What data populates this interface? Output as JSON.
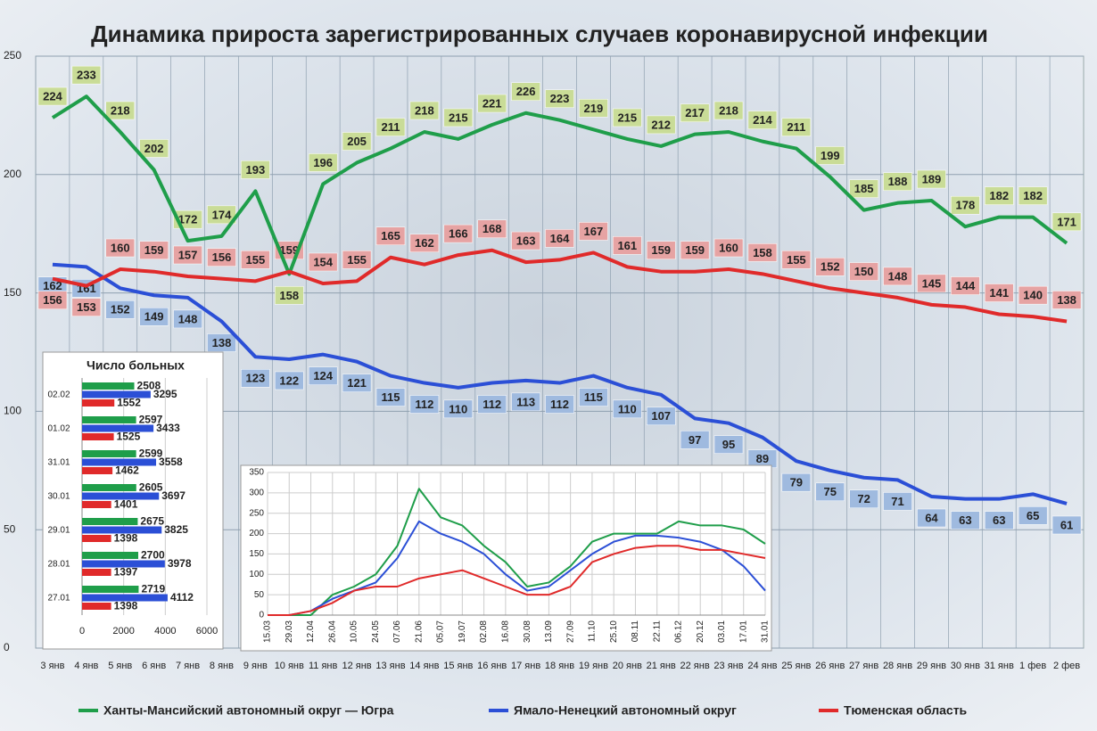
{
  "chart_data": [
    {
      "type": "line",
      "title": "Динамика прироста зарегистрированных случаев коронавирусной инфекции",
      "categories": [
        "3 янв",
        "4 янв",
        "5 янв",
        "6 янв",
        "7 янв",
        "8 янв",
        "9 янв",
        "10 янв",
        "11 янв",
        "12 янв",
        "13 янв",
        "14 янв",
        "15 янв",
        "16 янв",
        "17 янв",
        "18 янв",
        "19 янв",
        "20 янв",
        "21 янв",
        "22 янв",
        "23 янв",
        "24 янв",
        "25 янв",
        "26 янв",
        "27 янв",
        "28 янв",
        "29 янв",
        "30 янв",
        "31 янв",
        "1 фев",
        "2 фев"
      ],
      "series": [
        {
          "name": "Ханты-Мансийский автономный округ — Югра",
          "color": "#1f9e4a",
          "label_color": "#c9dc97",
          "values": [
            224,
            233,
            218,
            202,
            172,
            174,
            193,
            158,
            196,
            205,
            211,
            218,
            215,
            221,
            226,
            223,
            219,
            215,
            212,
            217,
            218,
            214,
            211,
            199,
            185,
            188,
            189,
            178,
            182,
            182,
            171
          ]
        },
        {
          "name": "Ямало-Ненецкий автономный округ",
          "color": "#2b4fd6",
          "label_color": "#9fbadf",
          "values": [
            162,
            161,
            152,
            149,
            148,
            138,
            123,
            122,
            124,
            121,
            115,
            112,
            110,
            112,
            113,
            112,
            115,
            110,
            107,
            97,
            95,
            89,
            79,
            75,
            72,
            71,
            64,
            63,
            63,
            65,
            61
          ]
        },
        {
          "name": "Тюменская область",
          "color": "#e02a2a",
          "label_color": "#e6a3a3",
          "values": [
            156,
            153,
            160,
            159,
            157,
            156,
            155,
            159,
            154,
            155,
            165,
            162,
            166,
            168,
            163,
            164,
            167,
            161,
            159,
            159,
            160,
            158,
            155,
            152,
            150,
            148,
            145,
            144,
            141,
            140,
            138
          ]
        }
      ],
      "ylim": [
        0,
        250
      ],
      "yticks": [
        0,
        50,
        100,
        150,
        200,
        250
      ],
      "grid": true
    },
    {
      "type": "hbar",
      "title": "Число больных",
      "categories": [
        "02.02",
        "01.02",
        "31.01",
        "30.01",
        "29.01",
        "28.01",
        "27.01"
      ],
      "series": [
        {
          "color": "#1f9e4a",
          "values": [
            2508,
            2597,
            2599,
            2605,
            2675,
            2700,
            2719
          ]
        },
        {
          "color": "#2b4fd6",
          "values": [
            3295,
            3433,
            3558,
            3697,
            3825,
            3978,
            4112
          ]
        },
        {
          "color": "#e02a2a",
          "values": [
            1552,
            1525,
            1462,
            1401,
            1398,
            1397,
            1398
          ]
        }
      ],
      "xlim": [
        0,
        6000
      ],
      "xticks": [
        0,
        2000,
        4000,
        6000
      ],
      "grid": true
    },
    {
      "type": "line",
      "categories": [
        "15.03",
        "29.03",
        "12.04",
        "26.04",
        "10.05",
        "24.05",
        "07.06",
        "21.06",
        "05.07",
        "19.07",
        "02.08",
        "16.08",
        "30.08",
        "13.09",
        "27.09",
        "11.10",
        "25.10",
        "08.11",
        "22.11",
        "06.12",
        "20.12",
        "03.01",
        "17.01",
        "31.01"
      ],
      "series": [
        {
          "color": "#1f9e4a",
          "values": [
            0,
            0,
            0,
            50,
            70,
            100,
            170,
            310,
            240,
            220,
            170,
            130,
            70,
            80,
            120,
            180,
            200,
            200,
            200,
            230,
            220,
            220,
            210,
            175
          ]
        },
        {
          "color": "#2b4fd6",
          "values": [
            0,
            0,
            10,
            40,
            60,
            80,
            140,
            230,
            200,
            180,
            150,
            100,
            60,
            70,
            110,
            150,
            180,
            195,
            195,
            190,
            180,
            160,
            120,
            60
          ]
        },
        {
          "color": "#e02a2a",
          "values": [
            0,
            0,
            10,
            30,
            60,
            70,
            70,
            90,
            100,
            110,
            90,
            70,
            50,
            50,
            70,
            130,
            150,
            165,
            170,
            170,
            160,
            160,
            150,
            140
          ]
        }
      ],
      "ylim": [
        0,
        350
      ],
      "yticks": [
        0,
        50,
        100,
        150,
        200,
        250,
        300,
        350
      ],
      "grid": true
    }
  ]
}
